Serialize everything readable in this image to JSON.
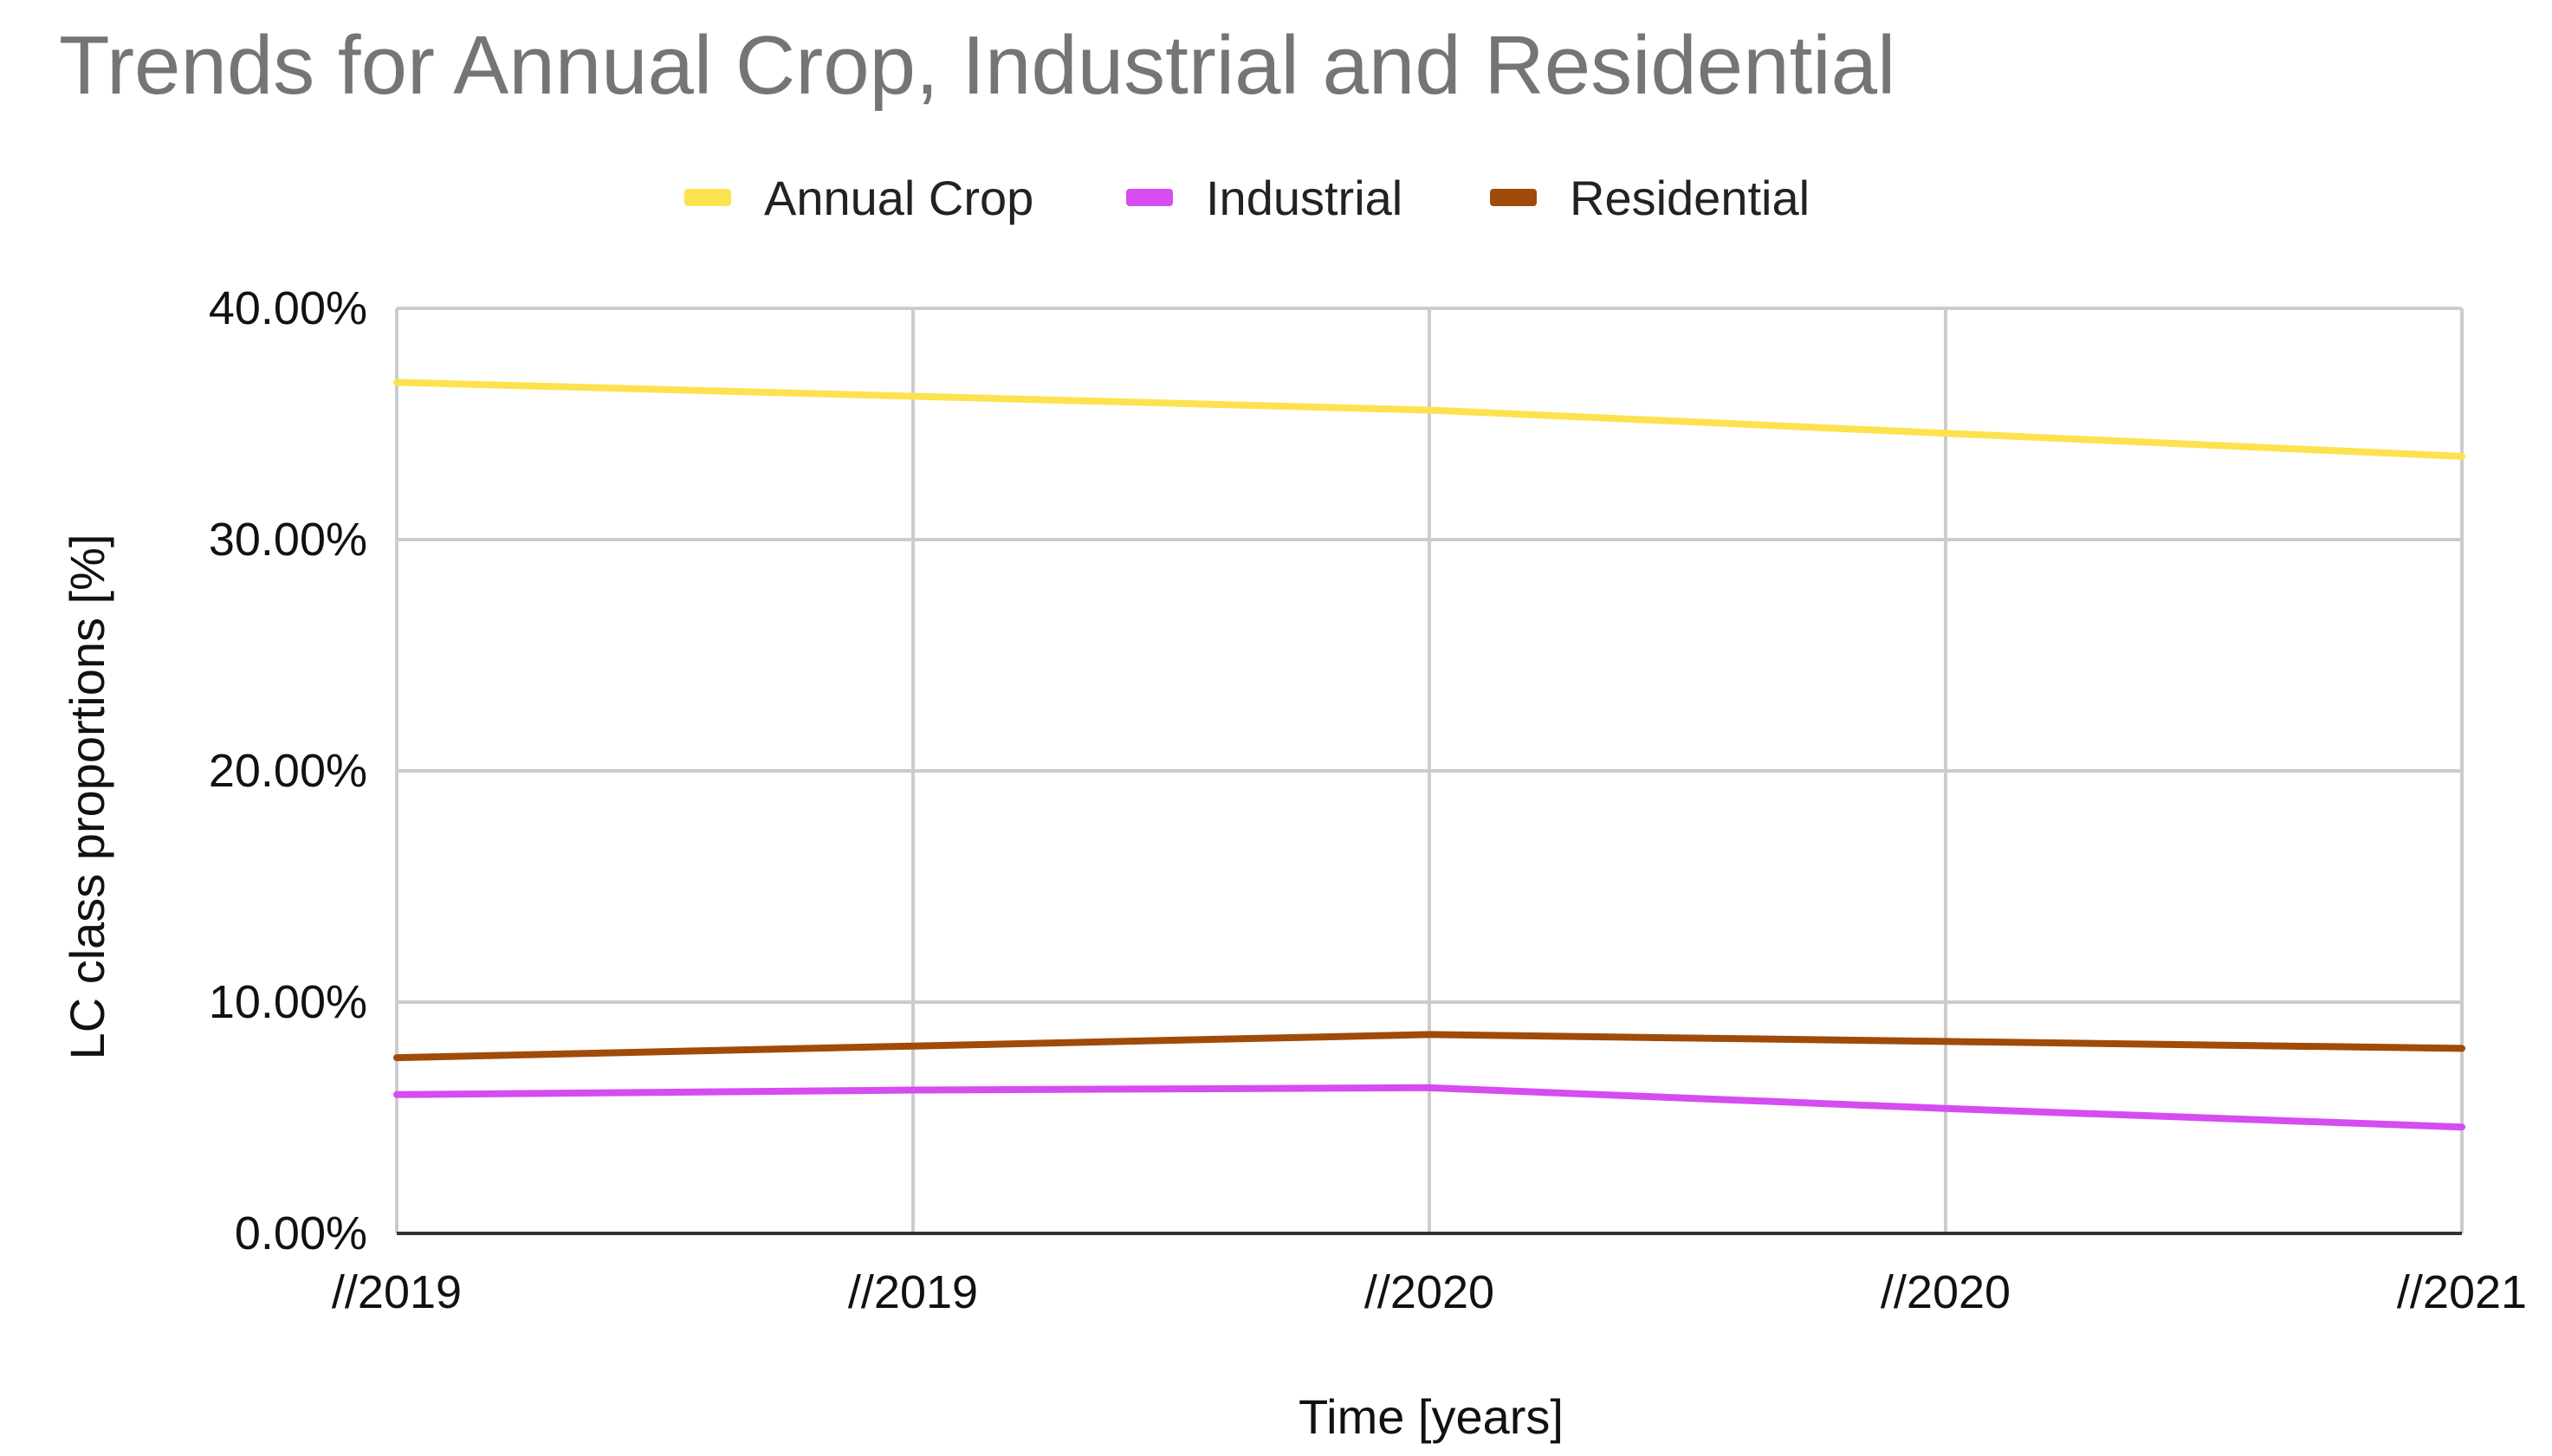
{
  "chart_data": {
    "type": "line",
    "title": "Trends for Annual Crop, Industrial and Residential",
    "xlabel": "Time [years]",
    "ylabel": "LC class proportions [%]",
    "categories": [
      "//2019",
      "//2019",
      "//2020",
      "//2020",
      "//2021"
    ],
    "ylim": [
      0,
      40
    ],
    "y_ticks": [
      0,
      10,
      20,
      30,
      40
    ],
    "y_tick_labels": [
      "0.00%",
      "10.00%",
      "20.00%",
      "30.00%",
      "40.00%"
    ],
    "grid": true,
    "legend_position": "top-center",
    "series": [
      {
        "name": "Annual Crop",
        "color": "#fde24f",
        "values": [
          36.8,
          36.2,
          35.6,
          34.6,
          33.6
        ]
      },
      {
        "name": "Industrial",
        "color": "#d64cf0",
        "values": [
          6.0,
          6.2,
          6.3,
          5.4,
          4.6
        ]
      },
      {
        "name": "Residential",
        "color": "#a04b0a",
        "values": [
          7.6,
          8.1,
          8.6,
          8.3,
          8.0
        ]
      }
    ]
  }
}
